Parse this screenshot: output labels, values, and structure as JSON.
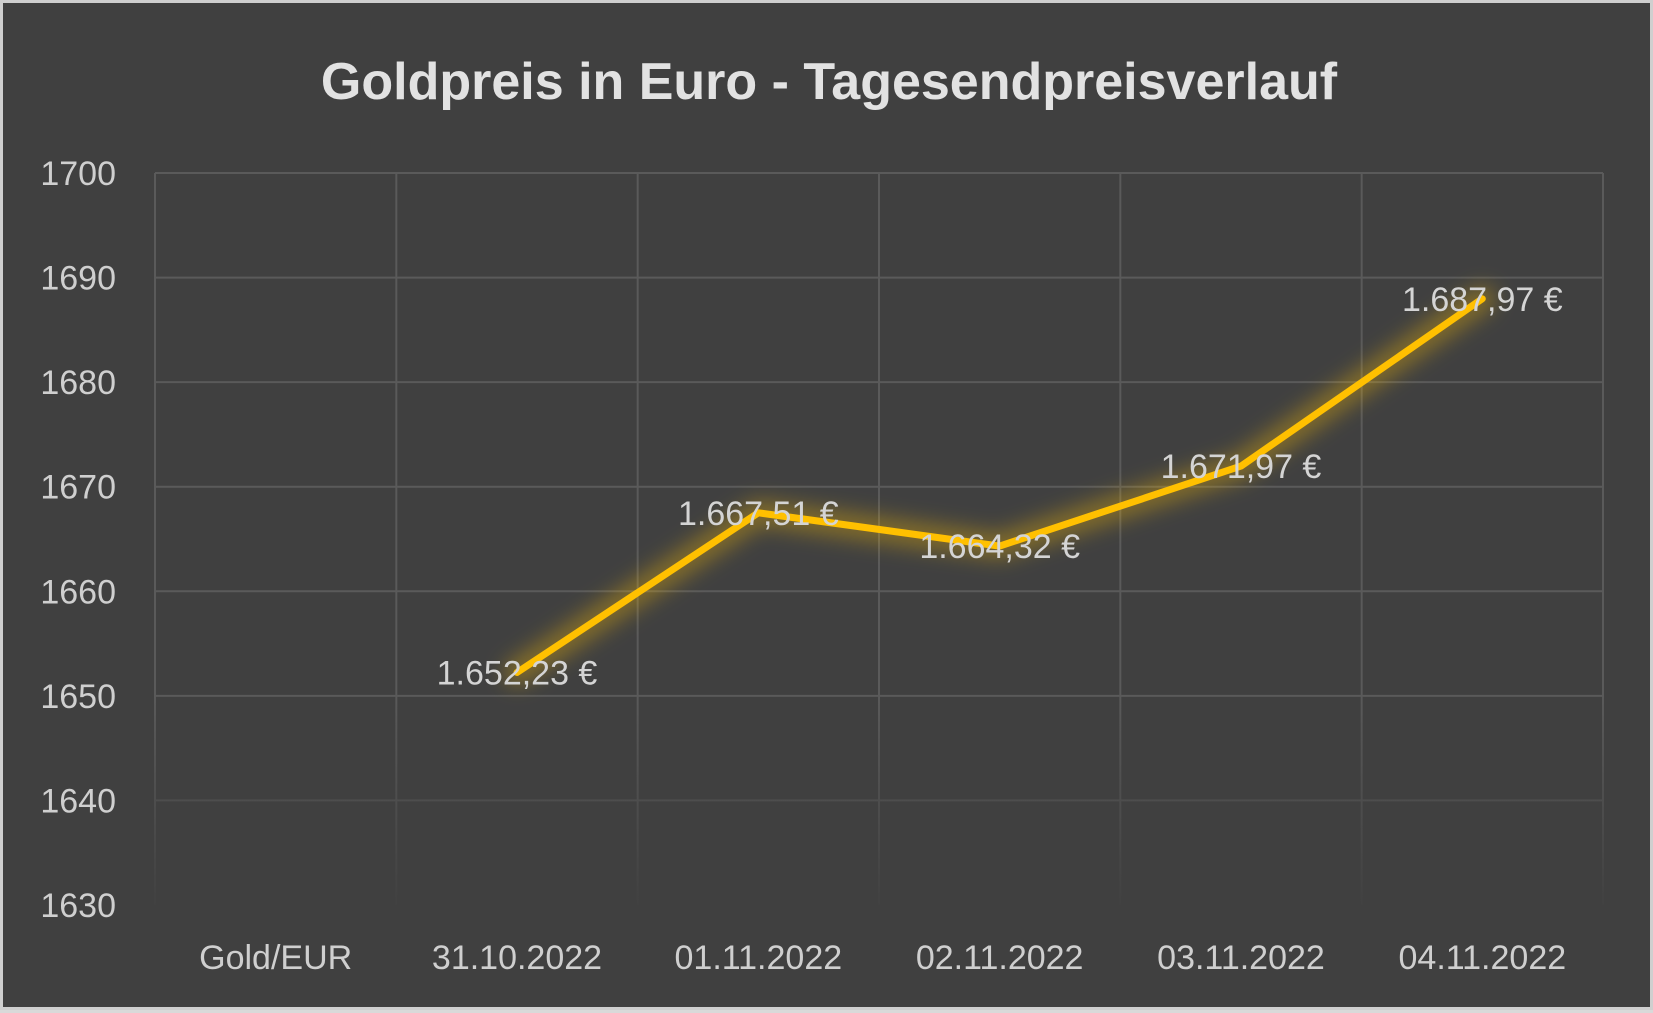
{
  "chart_data": {
    "type": "line",
    "title": "Goldpreis in Euro - Tagesendpreisverlauf",
    "xlabel": "",
    "ylabel": "",
    "categories": [
      "Gold/EUR",
      "31.10.2022",
      "01.11.2022",
      "02.11.2022",
      "03.11.2022",
      "04.11.2022"
    ],
    "series": [
      {
        "values": [
          null,
          1652.23,
          1667.51,
          1664.32,
          1671.97,
          1687.97
        ],
        "data_labels": [
          "",
          "1.652,23 €",
          "1.667,51 €",
          "1.664,32 €",
          "1.671,97 €",
          "1.687,97 €"
        ],
        "color": "#ffc000"
      }
    ],
    "ylim": [
      1630,
      1700
    ],
    "yticks": [
      "1700",
      "1690",
      "1680",
      "1670",
      "1660",
      "1650",
      "1640",
      "1630"
    ],
    "grid": true,
    "legend": "none",
    "background": "#404040",
    "gridline_color": "#5a5a5a"
  }
}
